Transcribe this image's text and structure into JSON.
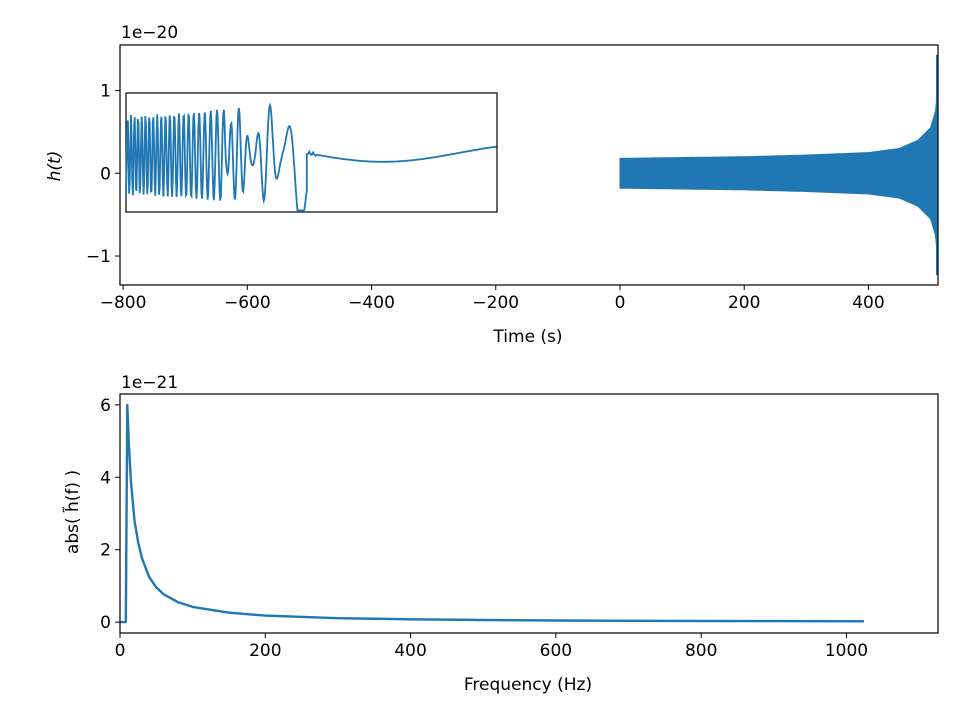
{
  "chart_data": [
    {
      "type": "line",
      "panel": "top",
      "xlabel": "Time (s)",
      "ylabel": "h(t)",
      "y_offset_text": "1e−20",
      "xlim": [
        -805,
        512
      ],
      "ylim": [
        -1.35,
        1.55
      ],
      "x_ticks": [
        -800,
        -600,
        -400,
        -200,
        0,
        200,
        400
      ],
      "x_tick_labels": [
        "−800",
        "−600",
        "−400",
        "−200",
        "0",
        "200",
        "400"
      ],
      "y_ticks": [
        -1,
        0,
        1
      ],
      "y_tick_labels": [
        "−1",
        "0",
        "1"
      ],
      "series": [
        {
          "color": "#1f77b4",
          "segment_start": 0,
          "segment_end": 512,
          "envelope": [
            [
              0,
              0.18
            ],
            [
              100,
              0.19
            ],
            [
              200,
              0.2
            ],
            [
              300,
              0.22
            ],
            [
              400,
              0.25
            ],
            [
              450,
              0.3
            ],
            [
              480,
              0.4
            ],
            [
              500,
              0.55
            ],
            [
              508,
              0.75
            ],
            [
              511,
              1.0
            ],
            [
              512,
              1.43
            ]
          ],
          "min_value": -1.23,
          "max_value": 1.43
        }
      ],
      "inset": {
        "description_x_range": [
          -795,
          -200
        ],
        "y_range": [
          -0.5,
          0.97
        ],
        "signal_end_x": -505,
        "oscillation_amplitude_start": 0.5,
        "oscillation_amplitude_end": 0.9,
        "slow_wave_level": 0.2
      }
    },
    {
      "type": "line",
      "panel": "bottom",
      "xlabel": "Frequency (Hz)",
      "ylabel": "abs( h̃(f) )",
      "y_offset_text": "1e−21",
      "xlim": [
        0,
        1126
      ],
      "ylim": [
        -0.3,
        6.3
      ],
      "x_ticks": [
        0,
        200,
        400,
        600,
        800,
        1000
      ],
      "x_tick_labels": [
        "0",
        "200",
        "400",
        "600",
        "800",
        "1000"
      ],
      "y_ticks": [
        0,
        2,
        4,
        6
      ],
      "y_tick_labels": [
        "0",
        "2",
        "4",
        "6"
      ],
      "series": [
        {
          "color": "#1f77b4",
          "x": [
            0,
            8,
            10,
            12,
            15,
            20,
            25,
            30,
            40,
            50,
            60,
            80,
            100,
            150,
            200,
            300,
            400,
            500,
            600,
            700,
            800,
            900,
            1024
          ],
          "values": [
            0,
            0,
            6.0,
            5.0,
            3.9,
            2.8,
            2.2,
            1.78,
            1.25,
            0.96,
            0.77,
            0.55,
            0.42,
            0.26,
            0.18,
            0.11,
            0.077,
            0.058,
            0.046,
            0.038,
            0.032,
            0.028,
            0.023
          ]
        }
      ]
    }
  ]
}
